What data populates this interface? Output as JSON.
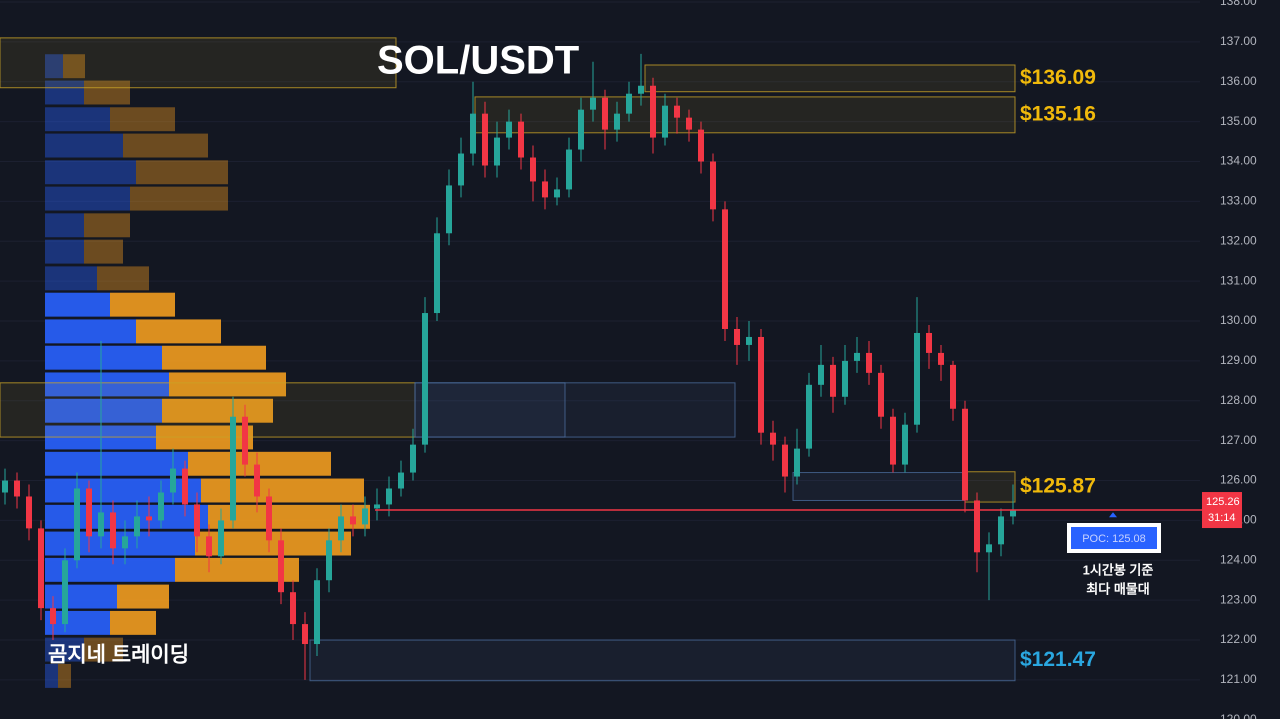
{
  "chart_data": {
    "type": "candlestick",
    "title": "SOL/USDT",
    "watermark": "곰지네 트레이딩",
    "ylim": [
      120.02,
      138.05
    ],
    "yticks": [
      {
        "value": 120,
        "label": "120.00"
      },
      {
        "value": 121,
        "label": "121.00"
      },
      {
        "value": 122,
        "label": "122.00"
      },
      {
        "value": 123,
        "label": "123.00"
      },
      {
        "value": 124,
        "label": "124.00"
      },
      {
        "value": 125,
        "label": "125.00"
      },
      {
        "value": 126,
        "label": "126.00"
      },
      {
        "value": 127,
        "label": "127.00"
      },
      {
        "value": 128,
        "label": "128.00"
      },
      {
        "value": 129,
        "label": "129.00"
      },
      {
        "value": 130,
        "label": "130.00"
      },
      {
        "value": 131,
        "label": "131.00"
      },
      {
        "value": 132,
        "label": "132.00"
      },
      {
        "value": 133,
        "label": "133.00"
      },
      {
        "value": 134,
        "label": "134.00"
      },
      {
        "value": 135,
        "label": "135.00"
      },
      {
        "value": 136,
        "label": "136.00"
      },
      {
        "value": 137,
        "label": "137.00"
      },
      {
        "value": 138,
        "label": "138.00"
      }
    ],
    "grid": true,
    "up_color": "#26a69a",
    "down_color": "#f23645",
    "open": [
      125.7,
      126.0,
      125.6,
      124.8,
      122.8,
      122.4,
      124.0,
      125.8,
      124.6,
      125.2,
      124.3,
      124.6,
      125.1,
      125.0,
      125.7,
      126.3,
      125.4,
      124.6,
      124.1,
      125.0,
      127.6,
      126.4,
      125.6,
      124.5,
      123.2,
      122.4,
      121.9,
      123.5,
      124.5,
      125.1,
      124.9,
      125.3,
      125.4,
      125.8,
      126.2,
      126.9,
      130.2,
      132.2,
      133.4,
      134.2,
      135.2,
      133.9,
      134.6,
      135.0,
      134.1,
      133.5,
      133.1,
      133.3,
      134.3,
      135.3,
      135.6,
      134.8,
      135.2,
      135.7,
      135.9,
      134.6,
      135.4,
      135.1,
      134.8,
      134.0,
      132.8,
      129.8,
      129.4,
      129.6,
      127.2,
      126.9,
      126.1,
      126.8,
      128.4,
      128.9,
      128.1,
      129.0,
      129.2,
      128.7,
      127.6,
      126.4,
      127.4,
      129.7,
      129.2,
      128.9,
      127.8,
      125.5,
      124.2,
      124.4,
      125.1
    ],
    "high": [
      126.3,
      126.2,
      125.9,
      125.0,
      123.1,
      124.3,
      126.2,
      126.0,
      129.5,
      125.5,
      125.0,
      125.5,
      125.6,
      126.0,
      126.8,
      126.5,
      125.7,
      124.9,
      125.3,
      128.1,
      127.9,
      126.7,
      125.8,
      124.8,
      123.5,
      122.7,
      123.8,
      124.8,
      125.4,
      125.4,
      125.6,
      125.8,
      126.1,
      126.5,
      127.3,
      130.6,
      132.6,
      133.8,
      134.6,
      136.0,
      135.5,
      135.0,
      135.3,
      135.2,
      134.4,
      133.8,
      133.6,
      134.6,
      135.6,
      136.5,
      135.8,
      135.5,
      136.0,
      136.7,
      136.1,
      135.7,
      135.6,
      135.3,
      135.0,
      134.2,
      133.0,
      130.1,
      130.0,
      129.8,
      127.5,
      127.1,
      127.3,
      128.7,
      129.4,
      129.1,
      129.4,
      129.6,
      129.5,
      128.9,
      127.8,
      127.7,
      130.6,
      129.9,
      129.4,
      129.0,
      128.0,
      125.7,
      124.7,
      125.3,
      125.9
    ],
    "low": [
      125.4,
      125.3,
      124.5,
      122.5,
      122.0,
      122.2,
      123.8,
      124.2,
      124.3,
      123.9,
      123.9,
      124.3,
      124.6,
      124.8,
      125.4,
      125.1,
      124.2,
      123.7,
      123.9,
      124.8,
      126.1,
      125.2,
      124.2,
      122.9,
      122.0,
      121.0,
      121.6,
      123.2,
      124.2,
      124.6,
      124.6,
      125.0,
      125.1,
      125.6,
      126.0,
      126.7,
      130.0,
      131.9,
      133.1,
      133.9,
      133.6,
      133.6,
      134.3,
      133.8,
      133.0,
      132.8,
      132.9,
      133.1,
      134.0,
      135.0,
      134.3,
      134.5,
      135.0,
      135.4,
      134.2,
      134.4,
      134.7,
      134.5,
      133.7,
      132.5,
      129.5,
      128.9,
      129.0,
      126.9,
      126.5,
      125.7,
      125.9,
      126.6,
      128.1,
      127.7,
      127.9,
      128.7,
      128.4,
      127.3,
      126.2,
      126.2,
      127.2,
      128.8,
      128.5,
      127.5,
      125.2,
      123.7,
      123.0,
      124.1,
      124.9
    ],
    "close": [
      126.0,
      125.6,
      124.8,
      122.8,
      122.4,
      124.0,
      125.8,
      124.6,
      125.2,
      124.3,
      124.6,
      125.1,
      125.0,
      125.7,
      126.3,
      125.4,
      124.6,
      124.1,
      125.0,
      127.6,
      126.4,
      125.6,
      124.5,
      123.2,
      122.4,
      121.9,
      123.5,
      124.5,
      125.1,
      124.9,
      125.3,
      125.4,
      125.8,
      126.2,
      126.9,
      130.2,
      132.2,
      133.4,
      134.2,
      135.2,
      133.9,
      134.6,
      135.0,
      134.1,
      133.5,
      133.1,
      133.3,
      134.3,
      135.3,
      135.6,
      134.8,
      135.2,
      135.7,
      135.9,
      134.6,
      135.4,
      135.1,
      134.8,
      134.0,
      132.8,
      129.8,
      129.4,
      129.6,
      127.2,
      126.9,
      126.1,
      126.8,
      128.4,
      128.9,
      128.1,
      129.0,
      129.2,
      128.7,
      127.6,
      126.4,
      127.4,
      129.7,
      129.2,
      128.9,
      127.8,
      125.5,
      124.2,
      124.4,
      125.1,
      125.26
    ],
    "volume_profile": {
      "levels": [
        136.39,
        135.73,
        135.06,
        134.4,
        133.73,
        133.07,
        132.4,
        131.74,
        131.07,
        130.41,
        129.74,
        129.08,
        128.41,
        127.75,
        127.08,
        126.42,
        125.75,
        125.09,
        124.42,
        123.76,
        123.09,
        122.43,
        121.76,
        121.1
      ],
      "row_size": 0.6,
      "buy": [
        18,
        39,
        65,
        78,
        91,
        85,
        39,
        39,
        52,
        65,
        91,
        117,
        124,
        117,
        111,
        143,
        156,
        163,
        150,
        130,
        72,
        65,
        39,
        13
      ],
      "sell": [
        22,
        46,
        65,
        85,
        92,
        98,
        46,
        39,
        52,
        65,
        85,
        104,
        117,
        111,
        97,
        143,
        163,
        162,
        156,
        124,
        52,
        46,
        39,
        13
      ],
      "buy_color": "#2962ff",
      "sell_color": "#f29c1f",
      "value_area": [
        122.2,
        130.8
      ]
    },
    "zones": [
      {
        "high": 137.1,
        "low": 135.85,
        "color": "#c9a227"
      },
      {
        "high": 136.42,
        "low": 135.75,
        "color": "#c9a227",
        "label": "$136.09"
      },
      {
        "high": 135.62,
        "low": 134.72,
        "color": "#c9a227",
        "label": "$135.16"
      },
      {
        "high": 128.45,
        "low": 127.09,
        "color": "#c9a227"
      },
      {
        "high": 128.45,
        "low": 127.09,
        "color": "#4a6a9a"
      },
      {
        "high": 128.45,
        "low": 127.09,
        "color": "#4a6a9a"
      },
      {
        "high": 126.22,
        "low": 125.46,
        "color": "#c9a227",
        "label": "$125.87"
      },
      {
        "high": 126.2,
        "low": 125.5,
        "color": "#4a6a9a"
      },
      {
        "high": 122.0,
        "low": 120.98,
        "color": "#4a6a9a",
        "label": "$121.47"
      }
    ],
    "last_price": {
      "value": 125.26,
      "countdown": "31:14",
      "color": "#f23645"
    },
    "poc": {
      "text": "POC: 125.08",
      "value": 125.08
    },
    "note": [
      "1시간봉 기준",
      "최다 매물대"
    ]
  }
}
